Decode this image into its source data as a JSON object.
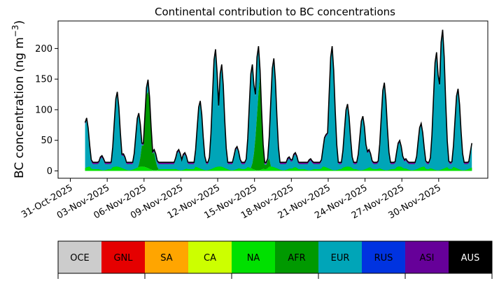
{
  "chart_data": {
    "type": "area",
    "title": "Continental contribution to BC concentrations",
    "ylabel": "BC concentration (ng m",
    "ylabel_sup": "−3",
    "ylabel_close": ")",
    "xlabel": "",
    "ylim": [
      -12,
      245
    ],
    "xlim": [
      "2025-10-30",
      "2025-12-04"
    ],
    "yticks": [
      0,
      50,
      100,
      150,
      200
    ],
    "xticks": [
      "31-Oct-2025",
      "03-Nov-2025",
      "06-Nov-2025",
      "09-Nov-2025",
      "12-Nov-2025",
      "15-Nov-2025",
      "18-Nov-2025",
      "21-Nov-2025",
      "24-Nov-2025",
      "27-Nov-2025",
      "30-Nov-2025"
    ],
    "grid": false,
    "legend_placement": "bottom",
    "legend": [
      {
        "label": "OCE",
        "color": "#cccccc",
        "text_color": "#000000"
      },
      {
        "label": "GNL",
        "color": "#e50000",
        "text_color": "#000000"
      },
      {
        "label": "SA",
        "color": "#ffa500",
        "text_color": "#000000"
      },
      {
        "label": "CA",
        "color": "#ccff00",
        "text_color": "#000000"
      },
      {
        "label": "NA",
        "color": "#00e000",
        "text_color": "#000000"
      },
      {
        "label": "AFR",
        "color": "#009900",
        "text_color": "#000000"
      },
      {
        "label": "EUR",
        "color": "#00a5b8",
        "text_color": "#000000"
      },
      {
        "label": "RUS",
        "color": "#0033e0",
        "text_color": "#000000"
      },
      {
        "label": "ASI",
        "color": "#660099",
        "text_color": "#000000"
      },
      {
        "label": "AUS",
        "color": "#000000",
        "text_color": "#ffffff"
      }
    ],
    "total_line_color": "#000000",
    "total_peaks": [
      [
        "2025-11-01",
        87
      ],
      [
        "2025-11-02",
        25
      ],
      [
        "2025-11-03",
        130
      ],
      [
        "2025-11-04",
        28
      ],
      [
        "2025-11-05",
        95
      ],
      [
        "2025-11-06",
        35
      ],
      [
        "2025-11-06",
        150
      ],
      [
        "2025-11-07",
        12
      ],
      [
        "2025-11-08",
        35
      ],
      [
        "2025-11-09",
        30
      ],
      [
        "2025-11-10",
        115
      ],
      [
        "2025-11-11",
        200
      ],
      [
        "2025-11-12",
        175
      ],
      [
        "2025-11-13",
        40
      ],
      [
        "2025-11-14",
        175
      ],
      [
        "2025-11-15",
        205
      ],
      [
        "2025-11-16",
        185
      ],
      [
        "2025-11-17",
        23
      ],
      [
        "2025-11-18",
        30
      ],
      [
        "2025-11-19",
        20
      ],
      [
        "2025-11-20",
        60
      ],
      [
        "2025-11-21",
        205
      ],
      [
        "2025-11-22",
        110
      ],
      [
        "2025-11-23",
        90
      ],
      [
        "2025-11-24",
        35
      ],
      [
        "2025-11-25",
        145
      ],
      [
        "2025-11-26",
        50
      ],
      [
        "2025-11-27",
        20
      ],
      [
        "2025-11-28",
        78
      ],
      [
        "2025-11-29",
        195
      ],
      [
        "2025-11-30",
        232
      ],
      [
        "2025-12-01",
        135
      ],
      [
        "2025-12-02",
        50
      ]
    ],
    "afr_peaks": [
      [
        "2025-11-06",
        130
      ],
      [
        "2025-11-15",
        165
      ]
    ]
  }
}
